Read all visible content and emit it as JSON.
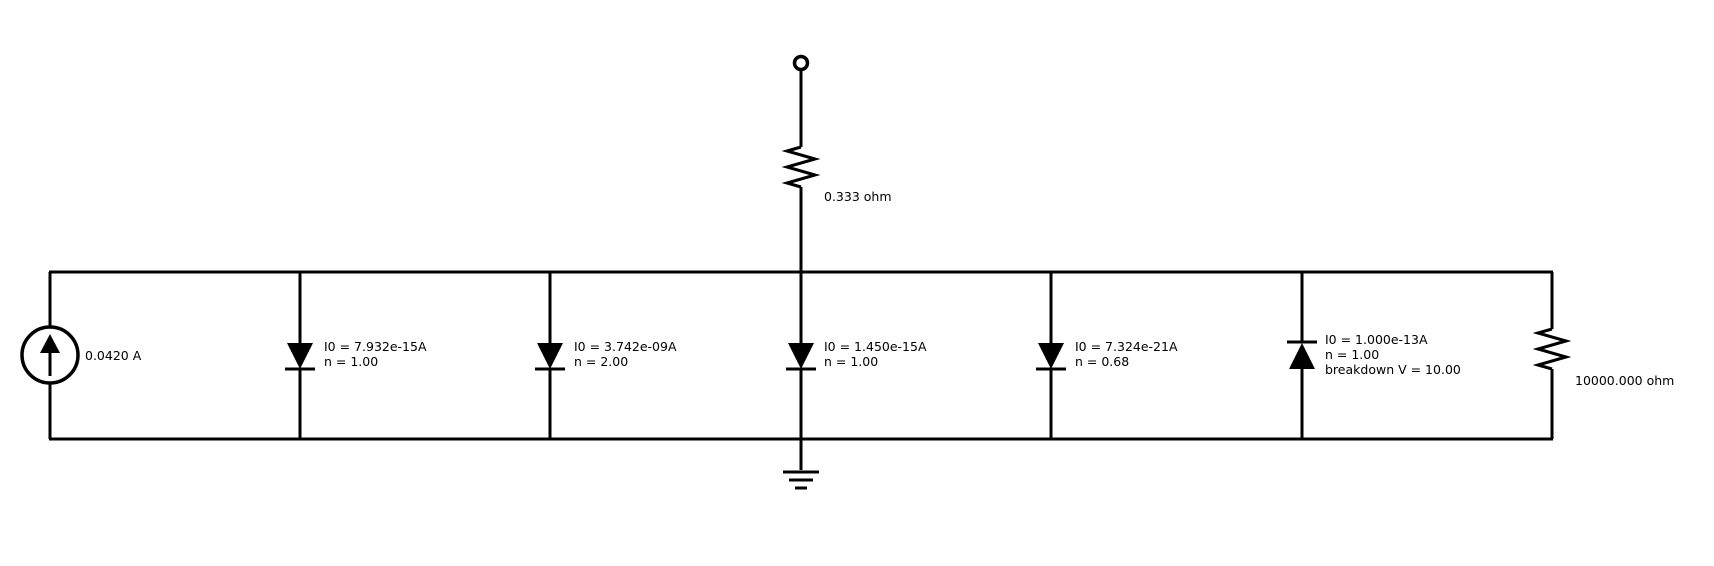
{
  "series_resistor": {
    "label": "0.333 ohm"
  },
  "current_source": {
    "label": "0.0420 A"
  },
  "diodes": [
    {
      "i0": "I0 = 7.932e-15A",
      "n": "n = 1.00"
    },
    {
      "i0": "I0 = 3.742e-09A",
      "n": "n = 2.00"
    },
    {
      "i0": "I0 = 1.450e-15A",
      "n": "n = 1.00"
    },
    {
      "i0": "I0 = 7.324e-21A",
      "n": "n = 0.68"
    }
  ],
  "zener_diode": {
    "i0": "I0 = 1.000e-13A",
    "n": "n = 1.00",
    "breakdown": "breakdown V = 10.00"
  },
  "shunt_resistor": {
    "label": "10000.000 ohm"
  }
}
